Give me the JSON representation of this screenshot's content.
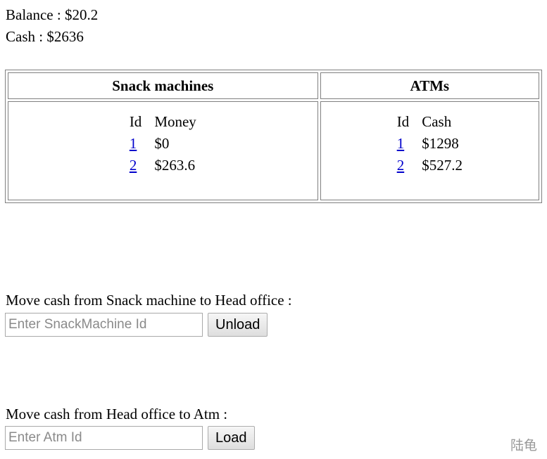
{
  "summary": {
    "balance": "Balance : $20.2",
    "cash": "Cash : $2636"
  },
  "table": {
    "snack_header": "Snack machines",
    "atm_header": "ATMs",
    "snack_columns": [
      "Id",
      "Money"
    ],
    "atm_columns": [
      "Id",
      "Cash"
    ],
    "snack_rows": [
      {
        "id": "1",
        "value": "$0"
      },
      {
        "id": "2",
        "value": "$263.6"
      }
    ],
    "atm_rows": [
      {
        "id": "1",
        "value": "$1298"
      },
      {
        "id": "2",
        "value": "$527.2"
      }
    ]
  },
  "unload_section": {
    "label": "Move cash from Snack machine to Head office :",
    "placeholder": "Enter SnackMachine Id",
    "value": "",
    "button": "Unload"
  },
  "load_section": {
    "label": "Move cash from Head office to Atm :",
    "placeholder": "Enter Atm Id",
    "value": "",
    "button": "Load"
  },
  "watermark": "陆龟"
}
